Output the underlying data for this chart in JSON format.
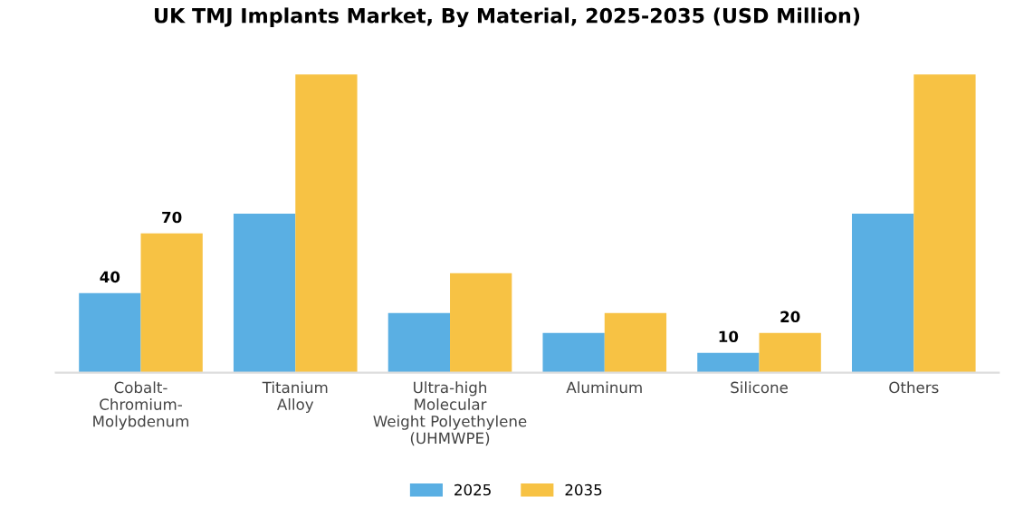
{
  "chart_data": {
    "type": "bar",
    "title": "UK TMJ Implants Market, By Material, 2025-2035 (USD Million)",
    "categories": [
      "Cobalt-\nChromium-\nMolybdenum",
      "Titanium\nAlloy",
      "Ultra-high\nMolecular\nWeight Polyethylene\n(UHMWPE)",
      "Aluminum",
      "Silicone",
      "Others"
    ],
    "series": [
      {
        "name": "2025",
        "color": "#5aafe3",
        "values": [
          40,
          80,
          30,
          20,
          10,
          80
        ],
        "value_labels": [
          "40",
          null,
          null,
          null,
          "10",
          null
        ]
      },
      {
        "name": "2035",
        "color": "#f7c244",
        "values": [
          70,
          150,
          50,
          30,
          20,
          150
        ],
        "value_labels": [
          "70",
          null,
          null,
          null,
          "20",
          null
        ]
      }
    ],
    "legend": "bottom",
    "grid": false
  }
}
